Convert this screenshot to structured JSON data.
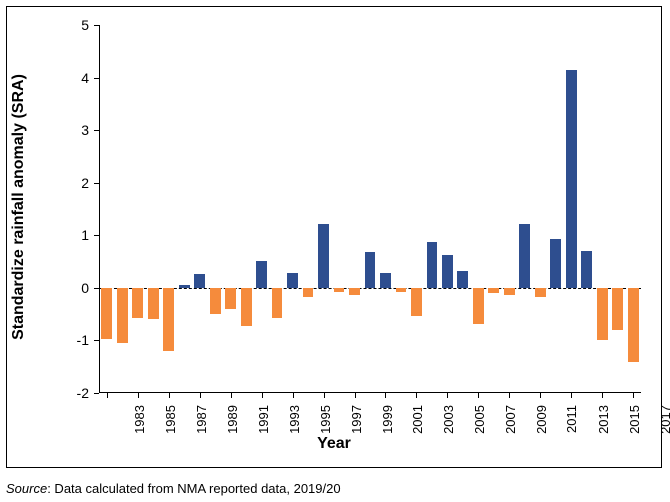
{
  "chart": {
    "type": "bar",
    "ylabel": "Standardize rainfall anomaly (SRA)",
    "xlabel": "Year",
    "label_fontsize": 16,
    "label_fontweight": "bold",
    "tick_fontsize": 14,
    "ylim": [
      -2,
      5
    ],
    "ytick_step": 1,
    "yticks": [
      -2,
      -1,
      0,
      1,
      2,
      3,
      4,
      5
    ],
    "xtick_labels": [
      1983,
      1985,
      1987,
      1989,
      1991,
      1993,
      1995,
      1997,
      1999,
      2001,
      2003,
      2005,
      2007,
      2009,
      2011,
      2013,
      2015,
      2017
    ],
    "years": [
      1983,
      1984,
      1985,
      1986,
      1987,
      1988,
      1989,
      1990,
      1991,
      1992,
      1993,
      1994,
      1995,
      1996,
      1997,
      1998,
      1999,
      2000,
      2001,
      2002,
      2003,
      2004,
      2005,
      2006,
      2007,
      2008,
      2009,
      2010,
      2011,
      2012,
      2013,
      2014,
      2015,
      2016,
      2017
    ],
    "values": [
      -0.98,
      -1.05,
      -0.58,
      -0.6,
      -1.2,
      0.06,
      0.26,
      -0.5,
      -0.4,
      -0.73,
      0.52,
      -0.58,
      0.28,
      -0.18,
      1.22,
      -0.08,
      -0.14,
      0.68,
      0.28,
      -0.08,
      -0.53,
      0.88,
      0.62,
      0.32,
      -0.68,
      -0.1,
      -0.13,
      1.22,
      -0.17,
      0.93,
      4.15,
      0.7,
      -1.0,
      -0.8,
      -1.42
    ],
    "positive_color": "#2e4e8f",
    "negative_color": "#f58b3c",
    "background_color": "#ffffff",
    "axis_color": "#000000",
    "zero_line_dash": true,
    "bar_gap_ratio": 0.3,
    "border_color": "#000000"
  },
  "source": {
    "label": "Source",
    "text": ": Data calculated from NMA reported data, 2019/20"
  }
}
